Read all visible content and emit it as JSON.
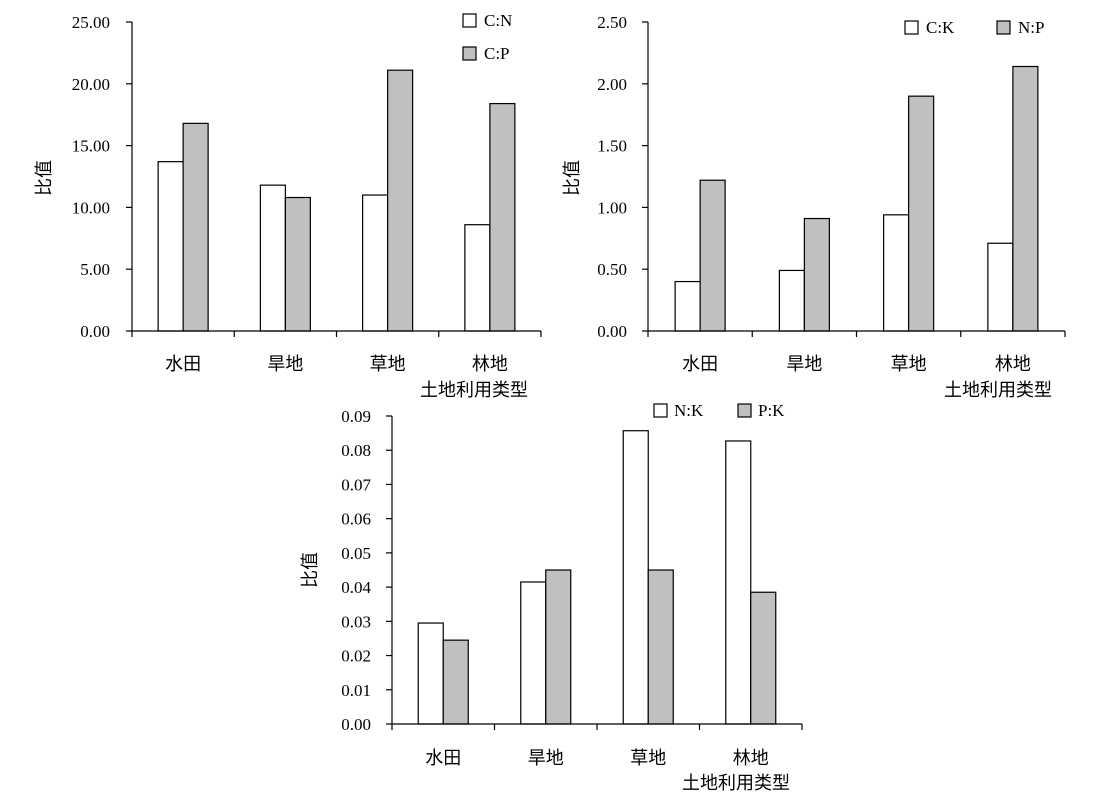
{
  "chart_data": [
    {
      "type": "bar",
      "categories": [
        "水田",
        "旱地",
        "草地",
        "林地"
      ],
      "series": [
        {
          "name": "C:N",
          "values": [
            13.7,
            11.8,
            11.0,
            8.6
          ]
        },
        {
          "name": "C:P",
          "values": [
            16.8,
            10.8,
            21.1,
            18.4
          ]
        }
      ],
      "xlabel": "土地利用类型",
      "ylabel": "比值",
      "ylim": [
        0,
        25
      ],
      "yticks": [
        "0.00",
        "5.00",
        "10.00",
        "15.00",
        "20.00",
        "25.00"
      ],
      "legend_position": "top-right",
      "grid": false,
      "colors": [
        "#ffffff",
        "#c0c0c0"
      ]
    },
    {
      "type": "bar",
      "categories": [
        "水田",
        "旱地",
        "草地",
        "林地"
      ],
      "series": [
        {
          "name": "C:K",
          "values": [
            0.4,
            0.49,
            0.94,
            0.71
          ]
        },
        {
          "name": "N:P",
          "values": [
            1.22,
            0.91,
            1.9,
            2.14
          ]
        }
      ],
      "xlabel": "土地利用类型",
      "ylabel": "比值",
      "ylim": [
        0,
        2.5
      ],
      "yticks": [
        "0.00",
        "0.50",
        "1.00",
        "1.50",
        "2.00",
        "2.50"
      ],
      "legend_position": "top-right",
      "grid": false,
      "colors": [
        "#ffffff",
        "#c0c0c0"
      ]
    },
    {
      "type": "bar",
      "categories": [
        "水田",
        "旱地",
        "草地",
        "林地"
      ],
      "series": [
        {
          "name": "N:K",
          "values": [
            0.0295,
            0.0415,
            0.0857,
            0.0827
          ]
        },
        {
          "name": "P:K",
          "values": [
            0.0245,
            0.045,
            0.045,
            0.0385
          ]
        }
      ],
      "xlabel": "土地利用类型",
      "ylabel": "比值",
      "ylim": [
        0,
        0.09
      ],
      "yticks": [
        "0.00",
        "0.01",
        "0.02",
        "0.03",
        "0.04",
        "0.05",
        "0.06",
        "0.07",
        "0.08",
        "0.09"
      ],
      "legend_position": "top-right",
      "grid": false,
      "colors": [
        "#ffffff",
        "#c0c0c0"
      ]
    }
  ]
}
